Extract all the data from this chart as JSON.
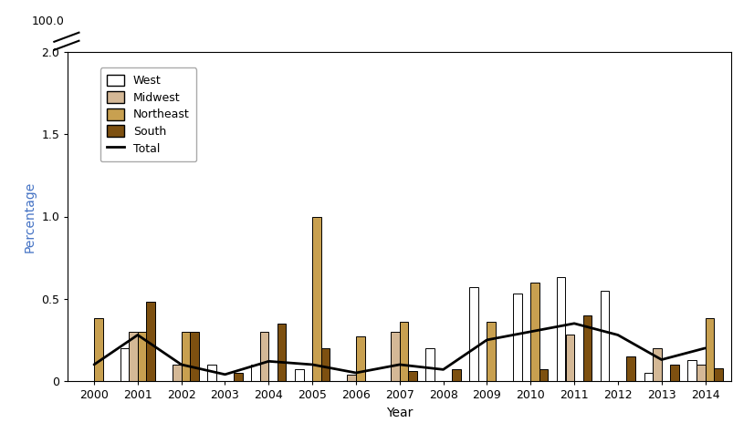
{
  "years": [
    2000,
    2001,
    2002,
    2003,
    2004,
    2005,
    2006,
    2007,
    2008,
    2009,
    2010,
    2011,
    2012,
    2013,
    2014
  ],
  "west": [
    0.0,
    0.2,
    0.0,
    0.1,
    0.1,
    0.07,
    0.0,
    0.0,
    0.2,
    0.57,
    0.53,
    0.63,
    0.55,
    0.05,
    0.13
  ],
  "midwest": [
    0.0,
    0.3,
    0.1,
    0.0,
    0.3,
    0.0,
    0.04,
    0.3,
    0.0,
    0.0,
    0.0,
    0.28,
    0.0,
    0.2,
    0.1
  ],
  "northeast": [
    0.38,
    0.3,
    0.3,
    0.0,
    0.0,
    1.0,
    0.27,
    0.36,
    0.0,
    0.36,
    0.6,
    0.0,
    0.0,
    0.0,
    0.38
  ],
  "south": [
    0.0,
    0.48,
    0.3,
    0.05,
    0.35,
    0.2,
    0.0,
    0.06,
    0.07,
    0.0,
    0.07,
    0.4,
    0.15,
    0.1,
    0.08
  ],
  "total": [
    0.1,
    0.28,
    0.1,
    0.04,
    0.12,
    0.1,
    0.05,
    0.1,
    0.07,
    0.25,
    0.3,
    0.35,
    0.28,
    0.13,
    0.2
  ],
  "color_west": "#ffffff",
  "color_midwest": "#d4b896",
  "color_northeast": "#c8a050",
  "color_south": "#7d5010",
  "color_total": "#000000",
  "edgecolor": "#000000",
  "ylabel": "Percentage",
  "xlabel": "Year",
  "ylim_main": [
    0,
    2.0
  ],
  "yticks_main": [
    0,
    0.5,
    1.0,
    1.5,
    2.0
  ],
  "bar_width": 0.2,
  "axis_fontsize": 10,
  "tick_fontsize": 9,
  "legend_fontsize": 9
}
